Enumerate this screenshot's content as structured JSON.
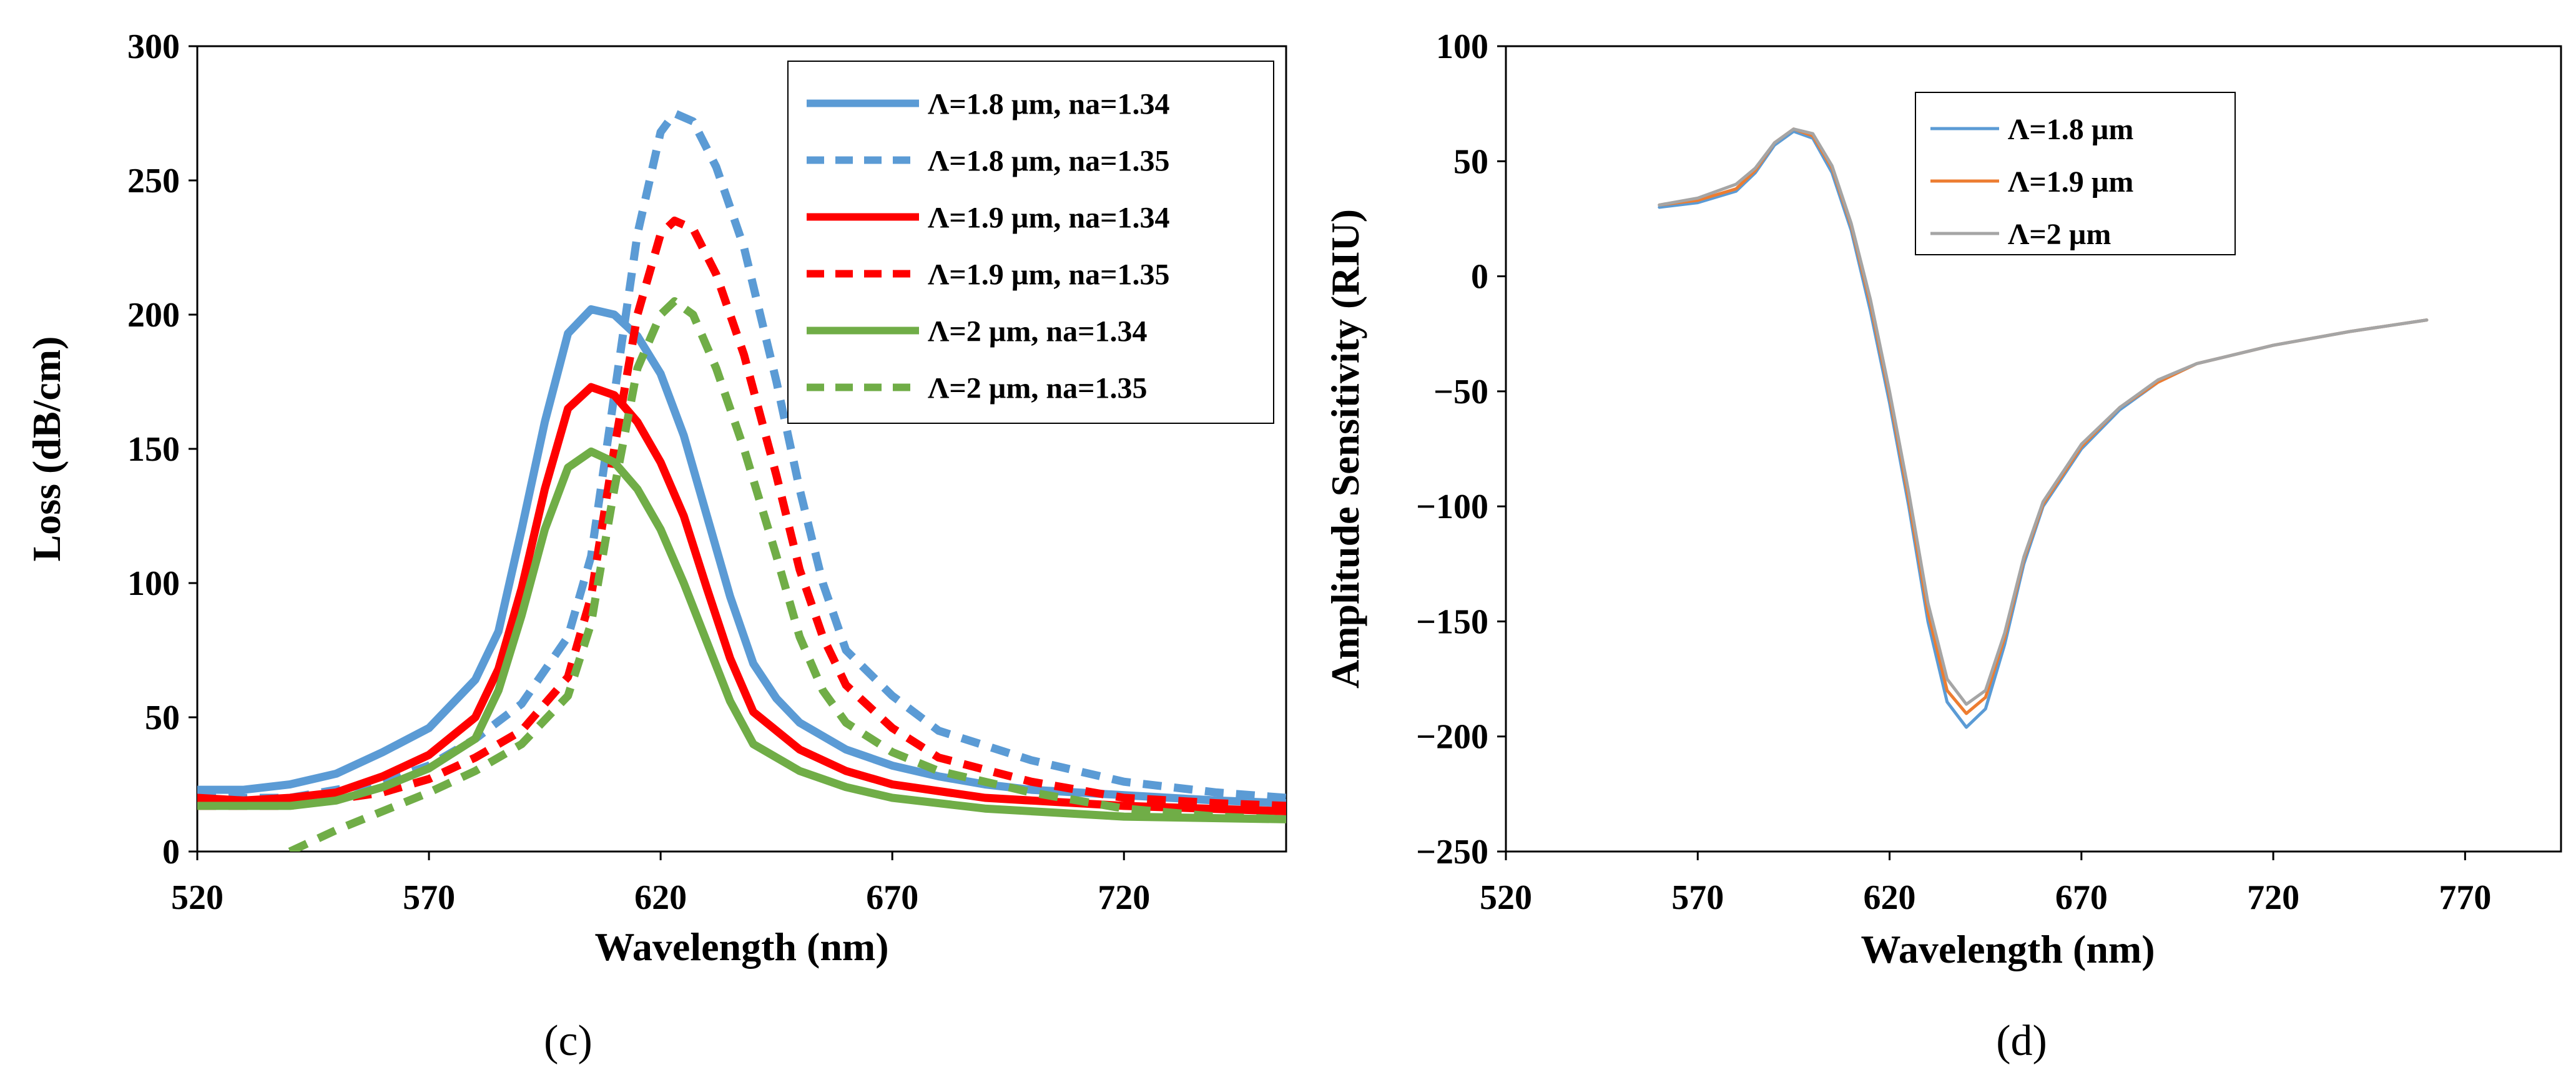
{
  "colors": {
    "blue": "#5b9bd5",
    "red": "#ff0000",
    "green": "#70ad47",
    "blue_d": "#5b9bd5",
    "orange_d": "#ed7d31",
    "gray_d": "#a5a5a5"
  },
  "chart_data": [
    {
      "type": "line",
      "panel_label": "(c)",
      "xlabel": "Wavelength (nm)",
      "ylabel": "Loss (dB/cm)",
      "xlim": [
        520,
        755
      ],
      "ylim": [
        0,
        300
      ],
      "xticks": [
        520,
        570,
        620,
        670,
        720
      ],
      "yticks": [
        0,
        50,
        100,
        150,
        200,
        250,
        300
      ],
      "grid": false,
      "legend_position": "top-right",
      "series": [
        {
          "name": "Λ=1.8 µm, na=1.34",
          "color": "blue",
          "dash": "solid",
          "points": [
            [
              520,
              23
            ],
            [
              530,
              23
            ],
            [
              540,
              25
            ],
            [
              550,
              29
            ],
            [
              560,
              37
            ],
            [
              570,
              46
            ],
            [
              580,
              64
            ],
            [
              585,
              82
            ],
            [
              590,
              120
            ],
            [
              595,
              160
            ],
            [
              600,
              193
            ],
            [
              605,
              202
            ],
            [
              610,
              200
            ],
            [
              615,
              192
            ],
            [
              620,
              178
            ],
            [
              625,
              155
            ],
            [
              630,
              125
            ],
            [
              635,
              95
            ],
            [
              640,
              70
            ],
            [
              645,
              57
            ],
            [
              650,
              48
            ],
            [
              660,
              38
            ],
            [
              670,
              32
            ],
            [
              680,
              28
            ],
            [
              690,
              25
            ],
            [
              700,
              23
            ],
            [
              720,
              21
            ],
            [
              740,
              19
            ],
            [
              755,
              18
            ]
          ]
        },
        {
          "name": "Λ=1.8 µm, na=1.35",
          "color": "blue",
          "dash": "dashed",
          "points": [
            [
              520,
              20
            ],
            [
              540,
              20
            ],
            [
              560,
              26
            ],
            [
              570,
              32
            ],
            [
              580,
              42
            ],
            [
              590,
              55
            ],
            [
              600,
              80
            ],
            [
              605,
              110
            ],
            [
              610,
              170
            ],
            [
              615,
              230
            ],
            [
              620,
              268
            ],
            [
              623,
              275
            ],
            [
              627,
              272
            ],
            [
              632,
              255
            ],
            [
              638,
              225
            ],
            [
              645,
              175
            ],
            [
              650,
              135
            ],
            [
              655,
              100
            ],
            [
              660,
              75
            ],
            [
              670,
              58
            ],
            [
              680,
              45
            ],
            [
              700,
              34
            ],
            [
              720,
              26
            ],
            [
              740,
              22
            ],
            [
              755,
              20
            ]
          ]
        },
        {
          "name": "Λ=1.9 µm, na=1.34",
          "color": "red",
          "dash": "solid",
          "points": [
            [
              520,
              20
            ],
            [
              530,
              19
            ],
            [
              540,
              20
            ],
            [
              550,
              22
            ],
            [
              560,
              28
            ],
            [
              570,
              36
            ],
            [
              580,
              50
            ],
            [
              585,
              68
            ],
            [
              590,
              98
            ],
            [
              595,
              135
            ],
            [
              600,
              165
            ],
            [
              605,
              173
            ],
            [
              610,
              170
            ],
            [
              615,
              160
            ],
            [
              620,
              145
            ],
            [
              625,
              125
            ],
            [
              630,
              98
            ],
            [
              635,
              72
            ],
            [
              640,
              52
            ],
            [
              650,
              38
            ],
            [
              660,
              30
            ],
            [
              670,
              25
            ],
            [
              690,
              20
            ],
            [
              720,
              17
            ],
            [
              755,
              15
            ]
          ]
        },
        {
          "name": "Λ=1.9 µm, na=1.35",
          "color": "red",
          "dash": "dashed",
          "points": [
            [
              520,
              17
            ],
            [
              540,
              17
            ],
            [
              560,
              22
            ],
            [
              570,
              27
            ],
            [
              580,
              35
            ],
            [
              590,
              45
            ],
            [
              600,
              65
            ],
            [
              605,
              95
            ],
            [
              610,
              150
            ],
            [
              615,
              200
            ],
            [
              620,
              230
            ],
            [
              623,
              235
            ],
            [
              627,
              232
            ],
            [
              632,
              215
            ],
            [
              638,
              185
            ],
            [
              645,
              140
            ],
            [
              650,
              105
            ],
            [
              655,
              80
            ],
            [
              660,
              62
            ],
            [
              670,
              46
            ],
            [
              680,
              35
            ],
            [
              700,
              26
            ],
            [
              720,
              20
            ],
            [
              740,
              18
            ],
            [
              755,
              17
            ]
          ]
        },
        {
          "name": "Λ=2 µm, na=1.34",
          "color": "green",
          "dash": "solid",
          "points": [
            [
              520,
              17
            ],
            [
              530,
              17
            ],
            [
              540,
              17
            ],
            [
              550,
              19
            ],
            [
              560,
              24
            ],
            [
              570,
              31
            ],
            [
              580,
              42
            ],
            [
              585,
              60
            ],
            [
              590,
              88
            ],
            [
              595,
              120
            ],
            [
              600,
              143
            ],
            [
              605,
              149
            ],
            [
              610,
              145
            ],
            [
              615,
              135
            ],
            [
              620,
              120
            ],
            [
              625,
              100
            ],
            [
              630,
              78
            ],
            [
              635,
              56
            ],
            [
              640,
              40
            ],
            [
              650,
              30
            ],
            [
              660,
              24
            ],
            [
              670,
              20
            ],
            [
              690,
              16
            ],
            [
              720,
              13
            ],
            [
              755,
              12
            ]
          ]
        },
        {
          "name": "Λ=2 µm, na=1.35",
          "color": "green",
          "dash": "dashed",
          "points": [
            [
              540,
              0
            ],
            [
              550,
              8
            ],
            [
              560,
              15
            ],
            [
              570,
              22
            ],
            [
              580,
              30
            ],
            [
              590,
              40
            ],
            [
              600,
              58
            ],
            [
              605,
              85
            ],
            [
              610,
              135
            ],
            [
              615,
              180
            ],
            [
              620,
              200
            ],
            [
              623,
              205
            ],
            [
              627,
              200
            ],
            [
              632,
              180
            ],
            [
              638,
              150
            ],
            [
              645,
              110
            ],
            [
              650,
              80
            ],
            [
              655,
              60
            ],
            [
              660,
              48
            ],
            [
              670,
              37
            ],
            [
              680,
              30
            ],
            [
              700,
              22
            ],
            [
              720,
              16
            ],
            [
              740,
              13
            ],
            [
              755,
              12
            ]
          ]
        }
      ]
    },
    {
      "type": "line",
      "panel_label": "(d)",
      "xlabel": "Wavelength (nm)",
      "ylabel": "Amplitude Sensitivity (RIU)",
      "xlim": [
        520,
        795
      ],
      "ylim": [
        -250,
        100
      ],
      "xticks": [
        520,
        570,
        620,
        670,
        720,
        770
      ],
      "yticks": [
        -250,
        -200,
        -150,
        -100,
        -50,
        0,
        50,
        100
      ],
      "grid": false,
      "legend_position": "top-center",
      "series": [
        {
          "name": "Λ=1.8 µm",
          "color": "blue_d",
          "points": [
            [
              560,
              30
            ],
            [
              570,
              32
            ],
            [
              580,
              37
            ],
            [
              585,
              45
            ],
            [
              590,
              57
            ],
            [
              595,
              63
            ],
            [
              600,
              60
            ],
            [
              605,
              45
            ],
            [
              610,
              20
            ],
            [
              615,
              -15
            ],
            [
              620,
              -55
            ],
            [
              625,
              -100
            ],
            [
              630,
              -150
            ],
            [
              635,
              -185
            ],
            [
              640,
              -196
            ],
            [
              645,
              -188
            ],
            [
              650,
              -160
            ],
            [
              655,
              -125
            ],
            [
              660,
              -100
            ],
            [
              670,
              -75
            ],
            [
              680,
              -58
            ],
            [
              690,
              -46
            ],
            [
              700,
              -38
            ],
            [
              720,
              -30
            ],
            [
              740,
              -24
            ],
            [
              760,
              -19
            ]
          ]
        },
        {
          "name": "Λ=1.9 µm",
          "color": "orange_d",
          "points": [
            [
              560,
              31
            ],
            [
              570,
              33
            ],
            [
              580,
              38
            ],
            [
              585,
              46
            ],
            [
              590,
              58
            ],
            [
              595,
              64
            ],
            [
              600,
              61
            ],
            [
              605,
              47
            ],
            [
              610,
              22
            ],
            [
              615,
              -12
            ],
            [
              620,
              -52
            ],
            [
              625,
              -97
            ],
            [
              630,
              -146
            ],
            [
              635,
              -180
            ],
            [
              640,
              -190
            ],
            [
              645,
              -183
            ],
            [
              650,
              -157
            ],
            [
              655,
              -123
            ],
            [
              660,
              -99
            ],
            [
              670,
              -74
            ],
            [
              680,
              -57
            ],
            [
              690,
              -46
            ],
            [
              700,
              -38
            ],
            [
              720,
              -30
            ],
            [
              740,
              -24
            ],
            [
              760,
              -19
            ]
          ]
        },
        {
          "name": "Λ=2 µm",
          "color": "gray_d",
          "points": [
            [
              560,
              31
            ],
            [
              570,
              34
            ],
            [
              580,
              40
            ],
            [
              585,
              47
            ],
            [
              590,
              58
            ],
            [
              595,
              64
            ],
            [
              600,
              62
            ],
            [
              605,
              48
            ],
            [
              610,
              23
            ],
            [
              615,
              -10
            ],
            [
              620,
              -50
            ],
            [
              625,
              -94
            ],
            [
              630,
              -142
            ],
            [
              635,
              -175
            ],
            [
              640,
              -186
            ],
            [
              645,
              -180
            ],
            [
              650,
              -155
            ],
            [
              655,
              -122
            ],
            [
              660,
              -98
            ],
            [
              670,
              -73
            ],
            [
              680,
              -57
            ],
            [
              690,
              -45
            ],
            [
              700,
              -38
            ],
            [
              720,
              -30
            ],
            [
              740,
              -24
            ],
            [
              760,
              -19
            ]
          ]
        }
      ]
    }
  ]
}
